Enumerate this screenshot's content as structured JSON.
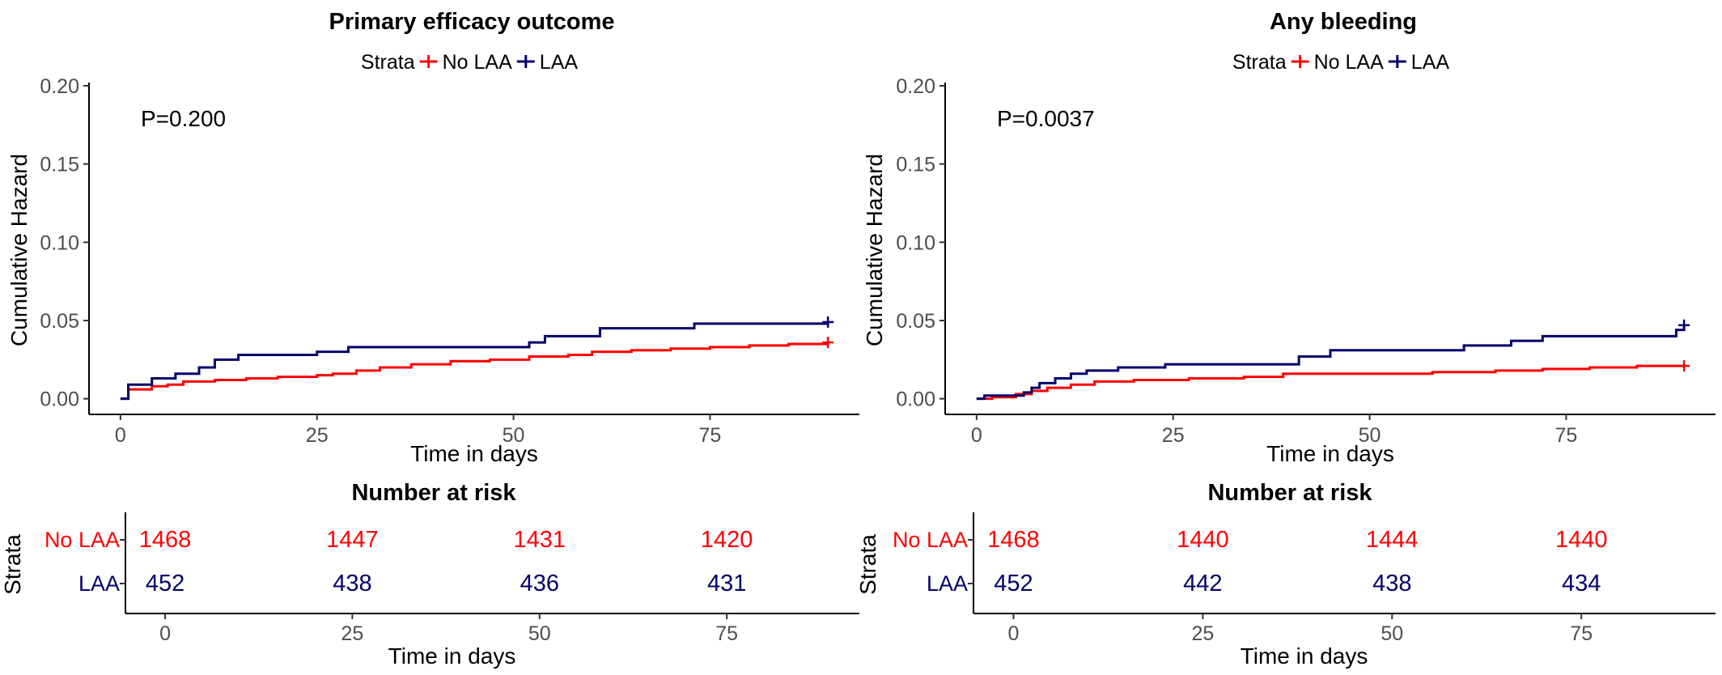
{
  "chart_data": [
    {
      "type": "line",
      "title": "Primary efficacy outcome",
      "legend": {
        "title": "Strata",
        "placement": "top-center",
        "labels": [
          "No LAA",
          "LAA"
        ]
      },
      "colors": {
        "No LAA": "#ff0000",
        "LAA": "#00006b"
      },
      "annotation": "P=0.200",
      "xlabel": "Time in days",
      "ylabel": "Cumulative Hazard",
      "xlim": [
        -4,
        94
      ],
      "ylim": [
        -0.01,
        0.2
      ],
      "x_ticks": [
        0,
        25,
        50,
        75
      ],
      "x_tick_labels": [
        "0",
        "25",
        "50",
        "75"
      ],
      "y_ticks": [
        0.0,
        0.05,
        0.1,
        0.15,
        0.2
      ],
      "y_tick_labels": [
        "0.00",
        "0.05",
        "0.10",
        "0.15",
        "0.20"
      ],
      "grid": false,
      "step": true,
      "series": [
        {
          "name": "No LAA",
          "x": [
            0,
            1,
            4,
            6,
            8,
            12,
            16,
            20,
            25,
            27,
            30,
            33,
            37,
            42,
            47,
            52,
            57,
            60,
            65,
            70,
            75,
            80,
            85,
            90
          ],
          "y": [
            0,
            0.006,
            0.008,
            0.009,
            0.011,
            0.012,
            0.013,
            0.014,
            0.015,
            0.016,
            0.018,
            0.02,
            0.022,
            0.024,
            0.025,
            0.027,
            0.028,
            0.03,
            0.031,
            0.032,
            0.033,
            0.034,
            0.035,
            0.036
          ],
          "censor_x": [
            90
          ],
          "censor_y": [
            0.036
          ]
        },
        {
          "name": "LAA",
          "x": [
            0,
            1,
            4,
            7,
            10,
            12,
            15,
            25,
            29,
            52,
            54,
            61,
            73,
            90
          ],
          "y": [
            0,
            0.009,
            0.013,
            0.016,
            0.02,
            0.025,
            0.028,
            0.03,
            0.033,
            0.036,
            0.04,
            0.045,
            0.048,
            0.049
          ],
          "censor_x": [
            90
          ],
          "censor_y": [
            0.049
          ]
        }
      ],
      "risk_table": {
        "title": "Number at risk",
        "ylabel": "Strata",
        "xlabel": "Time in days",
        "times": [
          0,
          25,
          50,
          75
        ],
        "time_labels": [
          "0",
          "25",
          "50",
          "75"
        ],
        "rows": [
          {
            "label": "No LAA",
            "values": [
              "1468",
              "1447",
              "1431",
              "1420"
            ]
          },
          {
            "label": "LAA",
            "values": [
              "452",
              "438",
              "436",
              "431"
            ]
          }
        ]
      }
    },
    {
      "type": "line",
      "title": "Any bleeding",
      "legend": {
        "title": "Strata",
        "placement": "top-center",
        "labels": [
          "No LAA",
          "LAA"
        ]
      },
      "colors": {
        "No LAA": "#ff0000",
        "LAA": "#00006b"
      },
      "annotation": "P=0.0037",
      "xlabel": "Time in days",
      "ylabel": "Cumulative Hazard",
      "xlim": [
        -4,
        94
      ],
      "ylim": [
        -0.01,
        0.2
      ],
      "x_ticks": [
        0,
        25,
        50,
        75
      ],
      "x_tick_labels": [
        "0",
        "25",
        "50",
        "75"
      ],
      "y_ticks": [
        0.0,
        0.05,
        0.1,
        0.15,
        0.2
      ],
      "y_tick_labels": [
        "0.00",
        "0.05",
        "0.10",
        "0.15",
        "0.20"
      ],
      "grid": false,
      "step": true,
      "series": [
        {
          "name": "No LAA",
          "x": [
            0,
            2,
            5,
            7,
            9,
            12,
            15,
            20,
            27,
            34,
            39,
            58,
            66,
            72,
            78,
            84,
            90
          ],
          "y": [
            0,
            0.001,
            0.003,
            0.005,
            0.007,
            0.009,
            0.011,
            0.012,
            0.013,
            0.014,
            0.016,
            0.017,
            0.018,
            0.019,
            0.02,
            0.021,
            0.021
          ],
          "censor_x": [
            90
          ],
          "censor_y": [
            0.021
          ]
        },
        {
          "name": "LAA",
          "x": [
            0,
            1,
            6,
            7,
            8,
            10,
            12,
            14,
            18,
            24,
            41,
            45,
            62,
            68,
            72,
            89,
            90
          ],
          "y": [
            0,
            0.002,
            0.004,
            0.007,
            0.01,
            0.013,
            0.016,
            0.018,
            0.02,
            0.022,
            0.027,
            0.031,
            0.034,
            0.037,
            0.04,
            0.044,
            0.047
          ],
          "censor_x": [
            90
          ],
          "censor_y": [
            0.047
          ]
        }
      ],
      "risk_table": {
        "title": "Number at risk",
        "ylabel": "Strata",
        "xlabel": "Time in days",
        "times": [
          0,
          25,
          50,
          75
        ],
        "time_labels": [
          "0",
          "25",
          "50",
          "75"
        ],
        "rows": [
          {
            "label": "No LAA",
            "values": [
              "1468",
              "1440",
              "1444",
              "1440"
            ]
          },
          {
            "label": "LAA",
            "values": [
              "452",
              "442",
              "438",
              "434"
            ]
          }
        ]
      }
    }
  ]
}
